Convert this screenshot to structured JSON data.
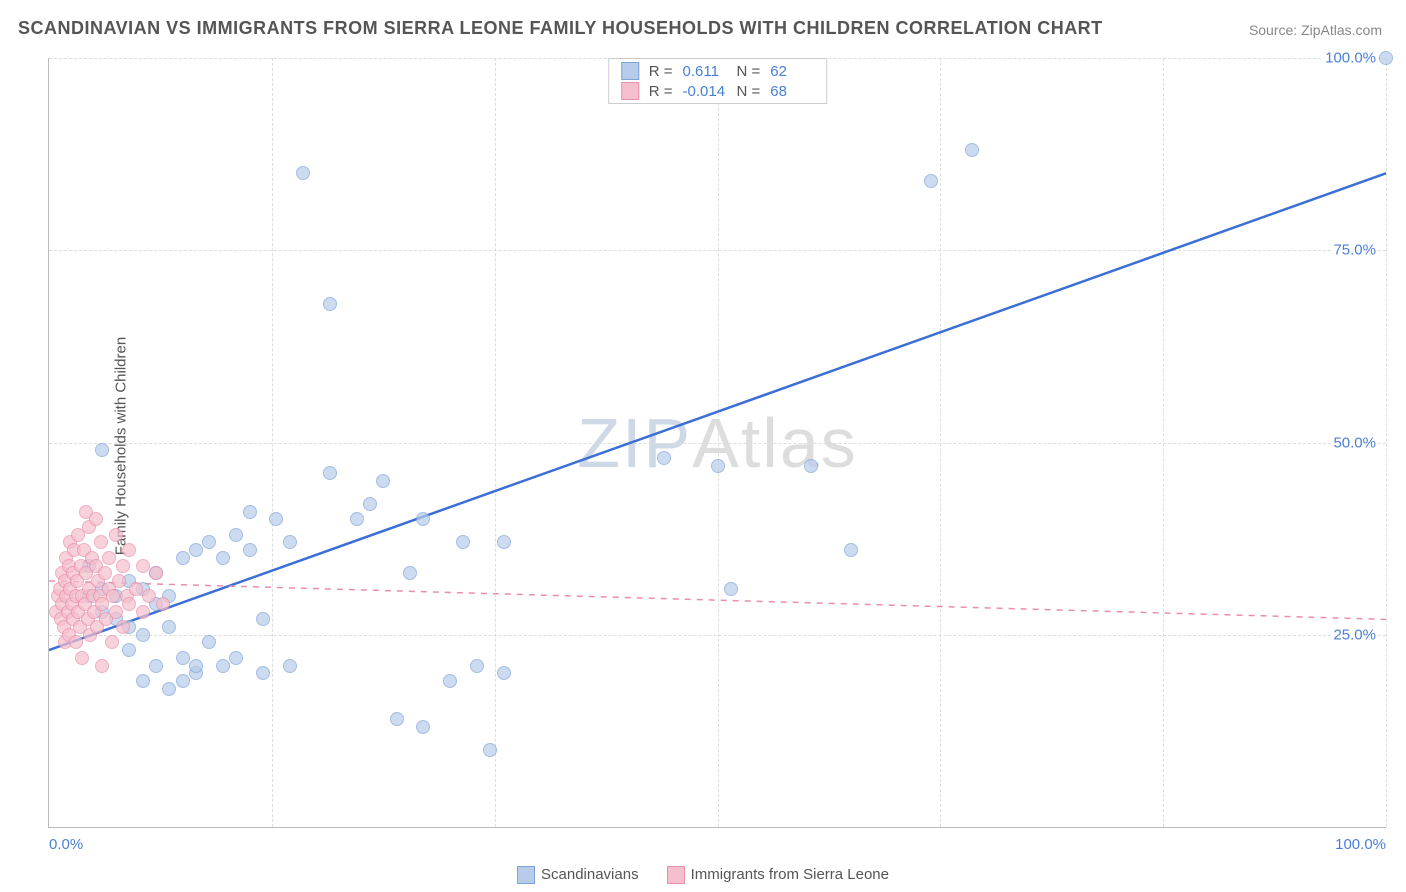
{
  "title": "SCANDINAVIAN VS IMMIGRANTS FROM SIERRA LEONE FAMILY HOUSEHOLDS WITH CHILDREN CORRELATION CHART",
  "source": "Source: ZipAtlas.com",
  "ylabel": "Family Households with Children",
  "watermark_a": "ZIP",
  "watermark_b": "Atlas",
  "chart": {
    "type": "scatter",
    "xlim": [
      0,
      100
    ],
    "ylim": [
      0,
      100
    ],
    "x_ticks": [
      {
        "v": 0,
        "label": "0.0%",
        "align": "left"
      },
      {
        "v": 100,
        "label": "100.0%",
        "align": "right"
      }
    ],
    "y_ticks": [
      {
        "v": 25,
        "label": "25.0%"
      },
      {
        "v": 50,
        "label": "50.0%"
      },
      {
        "v": 75,
        "label": "75.0%"
      },
      {
        "v": 100,
        "label": "100.0%"
      }
    ],
    "x_gridlines": [
      0,
      16.67,
      33.33,
      50,
      66.67,
      83.33,
      100
    ],
    "y_gridlines": [
      25,
      50,
      75,
      100
    ],
    "background_color": "#ffffff",
    "grid_color": "#dddddd",
    "marker_radius": 7,
    "series": [
      {
        "name": "Scandinavians",
        "fill": "#b7cceb",
        "stroke": "#7ea3d8",
        "fill_opacity": 0.7,
        "regression": {
          "y_at_x0": 23,
          "y_at_x100": 85,
          "color": "#3b6fd6",
          "width": 2.5,
          "dash": false
        },
        "R_label": "R =",
        "R": "0.611",
        "N_label": "N =",
        "N": "62",
        "points": [
          [
            3,
            30
          ],
          [
            4,
            28
          ],
          [
            5,
            27
          ],
          [
            5,
            30
          ],
          [
            6,
            26
          ],
          [
            6,
            32
          ],
          [
            7,
            25
          ],
          [
            7,
            31
          ],
          [
            8,
            29
          ],
          [
            8,
            33
          ],
          [
            9,
            26
          ],
          [
            9,
            30
          ],
          [
            10,
            22
          ],
          [
            10,
            35
          ],
          [
            11,
            20
          ],
          [
            11,
            36
          ],
          [
            12,
            24
          ],
          [
            12,
            37
          ],
          [
            13,
            21
          ],
          [
            13,
            35
          ],
          [
            14,
            38
          ],
          [
            14,
            22
          ],
          [
            15,
            36
          ],
          [
            15,
            41
          ],
          [
            16,
            27
          ],
          [
            16,
            20
          ],
          [
            17,
            40
          ],
          [
            18,
            21
          ],
          [
            18,
            37
          ],
          [
            4,
            49
          ],
          [
            19,
            85
          ],
          [
            21,
            46
          ],
          [
            21,
            68
          ],
          [
            23,
            40
          ],
          [
            24,
            42
          ],
          [
            25,
            45
          ],
          [
            26,
            14
          ],
          [
            27,
            33
          ],
          [
            28,
            13
          ],
          [
            28,
            40
          ],
          [
            30,
            19
          ],
          [
            31,
            37
          ],
          [
            32,
            21
          ],
          [
            33,
            10
          ],
          [
            34,
            20
          ],
          [
            34,
            37
          ],
          [
            46,
            48
          ],
          [
            50,
            47
          ],
          [
            51,
            31
          ],
          [
            57,
            47
          ],
          [
            60,
            36
          ],
          [
            66,
            84
          ],
          [
            69,
            88
          ],
          [
            100,
            100
          ],
          [
            6,
            23
          ],
          [
            7,
            19
          ],
          [
            8,
            21
          ],
          [
            9,
            18
          ],
          [
            10,
            19
          ],
          [
            11,
            21
          ],
          [
            4,
            31
          ],
          [
            3,
            34
          ]
        ]
      },
      {
        "name": "Immigrants from Sierra Leone",
        "fill": "#f6bfcd",
        "stroke": "#e98fa8",
        "fill_opacity": 0.7,
        "regression": {
          "y_at_x0": 32,
          "y_at_x100": 27,
          "color": "#e98fa8",
          "width": 1.5,
          "dash": true
        },
        "R_label": "R =",
        "R": "-0.014",
        "N_label": "N =",
        "N": "68",
        "points": [
          [
            0.5,
            28
          ],
          [
            0.7,
            30
          ],
          [
            0.8,
            31
          ],
          [
            0.9,
            27
          ],
          [
            1.0,
            29
          ],
          [
            1.0,
            33
          ],
          [
            1.1,
            26
          ],
          [
            1.2,
            32
          ],
          [
            1.2,
            24
          ],
          [
            1.3,
            35
          ],
          [
            1.3,
            30
          ],
          [
            1.4,
            28
          ],
          [
            1.5,
            34
          ],
          [
            1.5,
            25
          ],
          [
            1.6,
            31
          ],
          [
            1.6,
            37
          ],
          [
            1.7,
            29
          ],
          [
            1.8,
            33
          ],
          [
            1.8,
            27
          ],
          [
            1.9,
            36
          ],
          [
            2.0,
            30
          ],
          [
            2.0,
            24
          ],
          [
            2.1,
            32
          ],
          [
            2.2,
            28
          ],
          [
            2.2,
            38
          ],
          [
            2.3,
            26
          ],
          [
            2.4,
            34
          ],
          [
            2.5,
            30
          ],
          [
            2.5,
            22
          ],
          [
            2.6,
            36
          ],
          [
            2.7,
            29
          ],
          [
            2.8,
            33
          ],
          [
            2.8,
            41
          ],
          [
            2.9,
            27
          ],
          [
            3.0,
            31
          ],
          [
            3.0,
            39
          ],
          [
            3.1,
            25
          ],
          [
            3.2,
            35
          ],
          [
            3.3,
            30
          ],
          [
            3.4,
            28
          ],
          [
            3.5,
            34
          ],
          [
            3.5,
            40
          ],
          [
            3.6,
            26
          ],
          [
            3.7,
            32
          ],
          [
            3.8,
            30
          ],
          [
            3.9,
            37
          ],
          [
            4.0,
            29
          ],
          [
            4.0,
            21
          ],
          [
            4.2,
            33
          ],
          [
            4.3,
            27
          ],
          [
            4.5,
            35
          ],
          [
            4.5,
            31
          ],
          [
            4.7,
            24
          ],
          [
            4.8,
            30
          ],
          [
            5.0,
            28
          ],
          [
            5.0,
            38
          ],
          [
            5.2,
            32
          ],
          [
            5.5,
            26
          ],
          [
            5.5,
            34
          ],
          [
            5.8,
            30
          ],
          [
            6.0,
            29
          ],
          [
            6.0,
            36
          ],
          [
            6.5,
            31
          ],
          [
            7.0,
            28
          ],
          [
            7.0,
            34
          ],
          [
            7.5,
            30
          ],
          [
            8.0,
            33
          ],
          [
            8.5,
            29
          ]
        ]
      }
    ]
  }
}
